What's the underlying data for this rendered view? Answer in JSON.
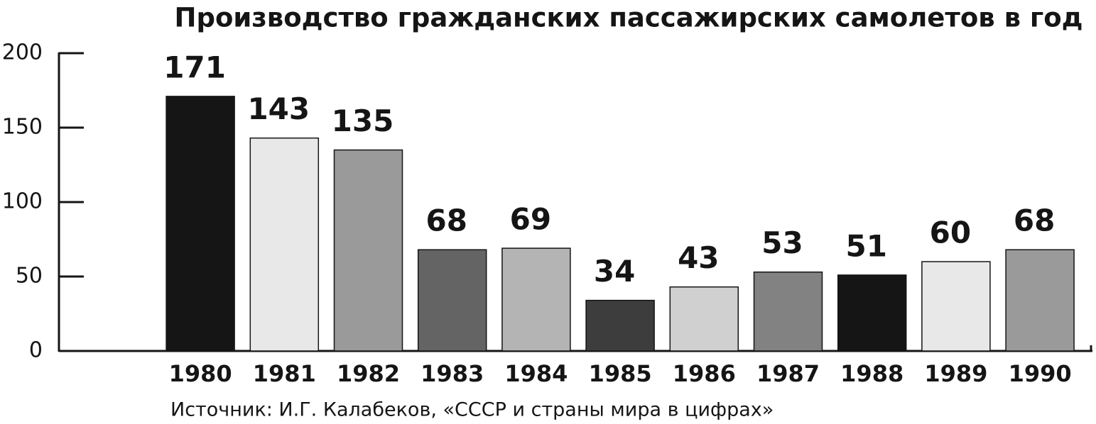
{
  "chart_data": {
    "type": "bar",
    "title": "Производство гражданских пассажирских самолетов в год",
    "source": "Источник: И.Г. Калабеков, «СССР и страны мира в цифрах»",
    "categories": [
      "1980",
      "1981",
      "1982",
      "1983",
      "1984",
      "1985",
      "1986",
      "1987",
      "1988",
      "1989",
      "1990"
    ],
    "values": [
      171,
      143,
      135,
      68,
      69,
      34,
      43,
      53,
      51,
      60,
      68
    ],
    "colors": [
      "#151515",
      "#e8e8e8",
      "#9a9a9a",
      "#646464",
      "#b4b4b4",
      "#3d3d3d",
      "#d0d0d0",
      "#828282",
      "#151515",
      "#e8e8e8",
      "#9a9a9a"
    ],
    "ylim": [
      0,
      200
    ],
    "yticks": [
      0,
      50,
      100,
      150,
      200
    ]
  }
}
